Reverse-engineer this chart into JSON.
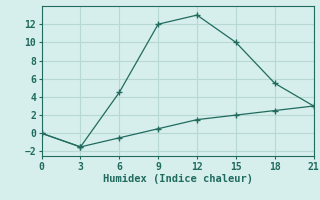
{
  "xlabel": "Humidex (Indice chaleur)",
  "line1_x": [
    0,
    3,
    6,
    9,
    12,
    15,
    18,
    21
  ],
  "line1_y": [
    0,
    -1.5,
    4.5,
    12,
    13,
    10,
    5.5,
    3
  ],
  "line2_x": [
    0,
    3,
    6,
    9,
    12,
    15,
    18,
    21
  ],
  "line2_y": [
    0,
    -1.5,
    -0.5,
    0.5,
    1.5,
    2.0,
    2.5,
    3
  ],
  "line_color": "#206b5e",
  "bg_color": "#d6efec",
  "grid_color": "#b8d8d4",
  "xlim": [
    0,
    21
  ],
  "ylim": [
    -2.5,
    14.0
  ],
  "xticks": [
    0,
    3,
    6,
    9,
    12,
    15,
    18,
    21
  ],
  "yticks": [
    -2,
    0,
    2,
    4,
    6,
    8,
    10,
    12
  ],
  "label_fontsize": 7.5,
  "tick_fontsize": 7
}
